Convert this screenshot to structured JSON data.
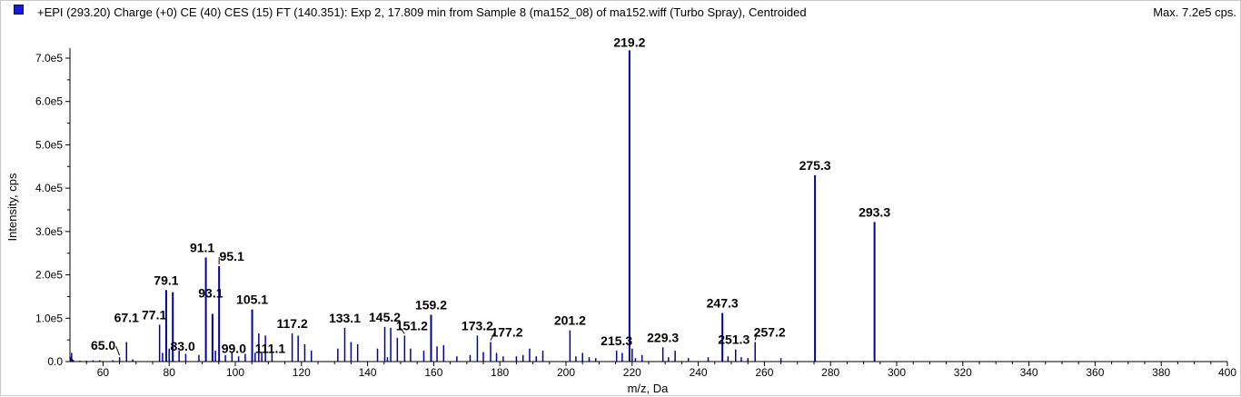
{
  "header": {
    "title": "+EPI (293.20) Charge (+0) CE (40) CES (15) FT (140.351): Exp 2, 17.809 min from Sample 8 (ma152_08) of ma152.wiff (Turbo Spray), Centroided",
    "max_label": "Max. 7.2e5 cps."
  },
  "colors": {
    "series": "#0000a0",
    "marker": "#1a1adb"
  },
  "chart_data": {
    "type": "bar",
    "xlabel": "m/z, Da",
    "ylabel": "Intensity, cps",
    "xlim": [
      50,
      400
    ],
    "ylim": [
      0,
      720000
    ],
    "xticks": [
      "60",
      "80",
      "100",
      "120",
      "140",
      "160",
      "180",
      "200",
      "220",
      "240",
      "260",
      "280",
      "300",
      "320",
      "340",
      "360",
      "380",
      "400"
    ],
    "yticks": [
      "0.0",
      "1.0e5",
      "2.0e5",
      "3.0e5",
      "4.0e5",
      "5.0e5",
      "6.0e5",
      "7.0e5"
    ],
    "grid": false,
    "series": [
      {
        "x": [
          50.5,
          51,
          53,
          55,
          57,
          59,
          63,
          65.0,
          67.1,
          69,
          77.1,
          78,
          79.1,
          80,
          81.1,
          83.0,
          85,
          89,
          91.1,
          93.1,
          94,
          95.1,
          97,
          99.0,
          101,
          103,
          105.1,
          106,
          107.1,
          108,
          109.1,
          111.1,
          117.2,
          119,
          121,
          123,
          131,
          133.1,
          135,
          137,
          143,
          145.2,
          146,
          147,
          149,
          151.2,
          153,
          157,
          159.2,
          161,
          163,
          167,
          171,
          173.2,
          175,
          177.2,
          179,
          181,
          185,
          187,
          189,
          191,
          193,
          201.2,
          203,
          205,
          207,
          209,
          215.3,
          217,
          219.2,
          220,
          221,
          223,
          229.3,
          231,
          233,
          237,
          243,
          247.3,
          249,
          251.3,
          253,
          255,
          257.2,
          265,
          275.3,
          293.3
        ],
        "y": [
          20000,
          4000,
          2000,
          2000,
          3000,
          3000,
          3000,
          10000,
          45000,
          5000,
          85000,
          20000,
          165000,
          30000,
          160000,
          25000,
          18000,
          15000,
          240000,
          110000,
          25000,
          220000,
          15000,
          20000,
          12000,
          18000,
          120000,
          20000,
          65000,
          20000,
          60000,
          20000,
          65000,
          60000,
          40000,
          25000,
          30000,
          78000,
          45000,
          40000,
          30000,
          80000,
          10000,
          78000,
          55000,
          60000,
          30000,
          25000,
          108000,
          35000,
          38000,
          12000,
          15000,
          60000,
          22000,
          45000,
          20000,
          12000,
          12000,
          15000,
          30000,
          12000,
          25000,
          72000,
          12000,
          20000,
          10000,
          8000,
          25000,
          20000,
          718000,
          30000,
          8000,
          15000,
          33000,
          10000,
          25000,
          8000,
          10000,
          112000,
          12000,
          28000,
          10000,
          8000,
          45000,
          8000,
          430000,
          322000
        ]
      }
    ],
    "annotations": [
      {
        "x": 65.0,
        "y": 10000,
        "text": "65.0"
      },
      {
        "x": 67.1,
        "y": 45000,
        "text": "67.1"
      },
      {
        "x": 77.1,
        "y": 85000,
        "text": "77.1"
      },
      {
        "x": 79.1,
        "y": 165000,
        "text": "79.1"
      },
      {
        "x": 83.0,
        "y": 25000,
        "text": "83.0"
      },
      {
        "x": 91.1,
        "y": 240000,
        "text": "91.1"
      },
      {
        "x": 93.1,
        "y": 110000,
        "text": "93.1"
      },
      {
        "x": 95.1,
        "y": 220000,
        "text": "95.1"
      },
      {
        "x": 99.0,
        "y": 20000,
        "text": "99.0"
      },
      {
        "x": 105.1,
        "y": 120000,
        "text": "105.1"
      },
      {
        "x": 111.1,
        "y": 20000,
        "text": "111.1"
      },
      {
        "x": 117.2,
        "y": 65000,
        "text": "117.2"
      },
      {
        "x": 133.1,
        "y": 78000,
        "text": "133.1"
      },
      {
        "x": 145.2,
        "y": 80000,
        "text": "145.2"
      },
      {
        "x": 151.2,
        "y": 60000,
        "text": "151.2"
      },
      {
        "x": 159.2,
        "y": 108000,
        "text": "159.2"
      },
      {
        "x": 173.2,
        "y": 60000,
        "text": "173.2"
      },
      {
        "x": 177.2,
        "y": 45000,
        "text": "177.2"
      },
      {
        "x": 201.2,
        "y": 72000,
        "text": "201.2"
      },
      {
        "x": 215.3,
        "y": 25000,
        "text": "215.3"
      },
      {
        "x": 219.2,
        "y": 718000,
        "text": "219.2"
      },
      {
        "x": 229.3,
        "y": 33000,
        "text": "229.3"
      },
      {
        "x": 247.3,
        "y": 112000,
        "text": "247.3"
      },
      {
        "x": 251.3,
        "y": 28000,
        "text": "251.3"
      },
      {
        "x": 257.2,
        "y": 45000,
        "text": "257.2"
      },
      {
        "x": 275.3,
        "y": 430000,
        "text": "275.3"
      },
      {
        "x": 293.3,
        "y": 322000,
        "text": "293.3"
      }
    ]
  }
}
